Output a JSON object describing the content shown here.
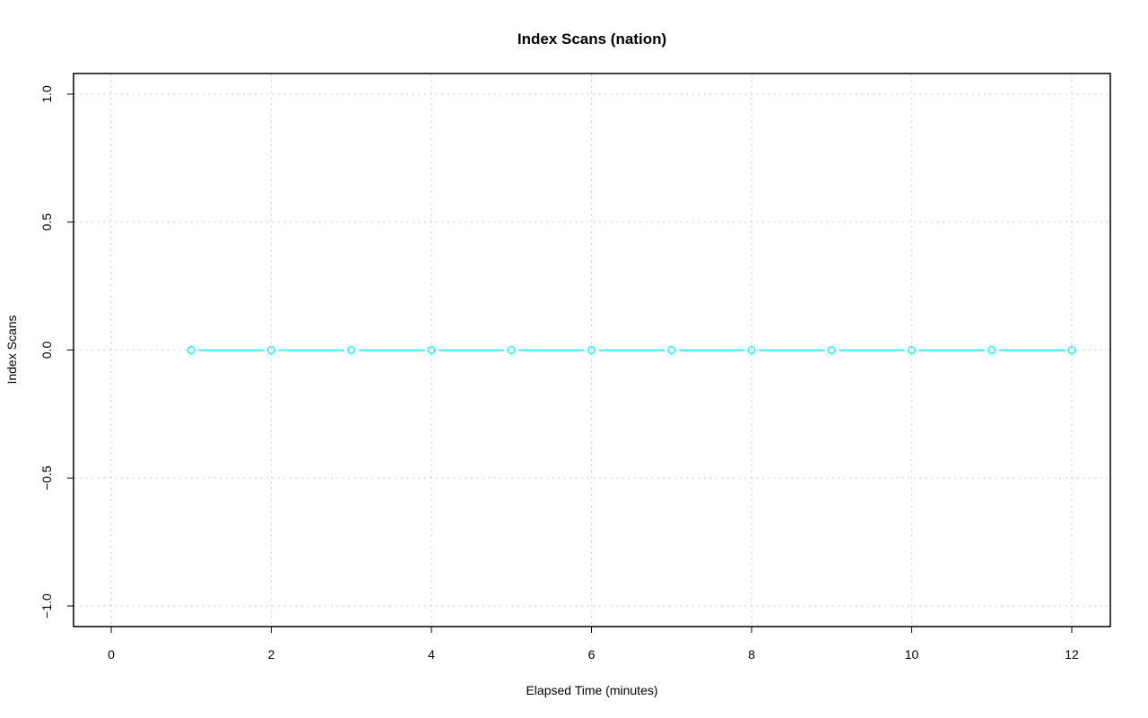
{
  "chart_data": {
    "type": "line",
    "title": "Index Scans (nation)",
    "xlabel": "Elapsed Time (minutes)",
    "ylabel": "Index Scans",
    "xlim": [
      0,
      12
    ],
    "ylim": [
      -1,
      1
    ],
    "x_ticks": [
      "0",
      "2",
      "4",
      "6",
      "8",
      "10",
      "12"
    ],
    "y_ticks": [
      "−1.0",
      "−0.5",
      "0.0",
      "0.5",
      "1.0"
    ],
    "grid": true,
    "series": [
      {
        "color": "#00ffff",
        "x": [
          1,
          2,
          3,
          4,
          5,
          6,
          7,
          8,
          9,
          10,
          11,
          12
        ],
        "y": [
          0,
          0,
          0,
          0,
          0,
          0,
          0,
          0,
          0,
          0,
          0,
          0
        ]
      }
    ]
  }
}
